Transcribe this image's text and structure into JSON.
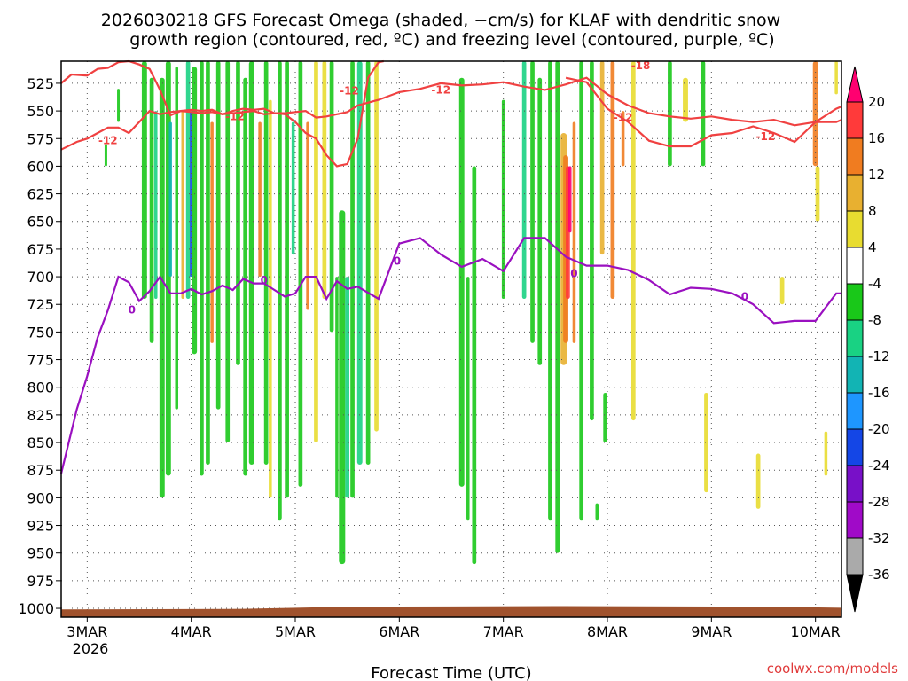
{
  "chart_data": {
    "type": "heatmap",
    "title_line1": "2026030218 GFS Forecast Omega (shaded, −cm/s) for KLAF with dendritic snow",
    "title_line2": "growth region (contoured, red, ºC) and freezing level (contoured, purple, ºC)",
    "xlabel": "Forecast Time (UTC)",
    "credit": "coolwx.com/models",
    "x_ticks": [
      "3MAR",
      "4MAR",
      "5MAR",
      "6MAR",
      "7MAR",
      "8MAR",
      "9MAR",
      "10MAR"
    ],
    "x_year": "2026",
    "x_range_days": [
      2.75,
      10.25
    ],
    "y_ticks": [
      525,
      550,
      575,
      600,
      625,
      650,
      675,
      700,
      725,
      750,
      775,
      800,
      825,
      850,
      875,
      900,
      925,
      950,
      975,
      1000
    ],
    "y_range_hpa": [
      1008,
      505
    ],
    "colorbar": {
      "labels": [
        "20",
        "16",
        "12",
        "8",
        "4",
        "-4",
        "-8",
        "-12",
        "-16",
        "-20",
        "-24",
        "-28",
        "-32",
        "-36"
      ],
      "colors": [
        "#ff0070",
        "#ff3a3a",
        "#f07c20",
        "#e8b030",
        "#e8dc30",
        "#ffffff",
        "#19c819",
        "#19d283",
        "#12b4b4",
        "#1e96ff",
        "#1446e6",
        "#7810c8",
        "#a00ac8",
        "#aaaaaa",
        "#000000"
      ]
    },
    "contour_colors": {
      "dgz": "#f04141",
      "freezing": "#9a10c0"
    },
    "contour_labels": {
      "dgz": "-12",
      "dgz_top": "-18",
      "freezing": "0"
    },
    "series": [
      {
        "name": "dgz_upper",
        "x": [
          2.75,
          2.85,
          3.0,
          3.1,
          3.2,
          3.3,
          3.4,
          3.5,
          3.6,
          3.7,
          3.8,
          3.9,
          4.0,
          4.1,
          4.2,
          4.3,
          4.4,
          4.5,
          4.6,
          4.7,
          4.8,
          4.9,
          5.0,
          5.1,
          5.2,
          5.3,
          5.4,
          5.5,
          5.6,
          5.7,
          5.8,
          5.85
        ],
        "y": [
          525,
          517,
          518,
          512,
          511,
          506,
          505,
          508,
          512,
          531,
          554,
          550,
          549,
          550,
          549,
          553,
          550,
          548,
          549,
          548,
          552,
          553,
          560,
          570,
          575,
          590,
          600,
          598,
          575,
          520,
          506,
          505
        ]
      },
      {
        "name": "dgz_lower",
        "x": [
          2.75,
          2.9,
          3.0,
          3.1,
          3.2,
          3.3,
          3.4,
          3.5,
          3.6,
          3.7,
          3.8,
          3.9,
          4.0,
          4.1,
          4.2,
          4.3,
          4.4,
          4.5,
          4.6,
          4.7,
          4.8,
          4.9,
          5.0,
          5.1,
          5.2,
          5.3,
          5.4,
          5.5,
          5.6,
          5.8,
          6.0,
          6.2,
          6.4,
          6.6,
          6.8,
          7.0,
          7.2,
          7.4,
          7.6,
          7.8,
          8.0,
          8.2,
          8.4,
          8.6,
          8.8,
          9.0,
          9.2,
          9.4,
          9.6,
          9.8,
          10.0,
          10.2,
          10.25
        ],
        "y": [
          585,
          578,
          575,
          570,
          565,
          565,
          570,
          560,
          550,
          553,
          551,
          550,
          551,
          552,
          551,
          553,
          552,
          551,
          550,
          553,
          552,
          552,
          551,
          550,
          556,
          555,
          553,
          551,
          545,
          540,
          533,
          530,
          525,
          527,
          526,
          524,
          528,
          531,
          526,
          520,
          535,
          545,
          552,
          555,
          557,
          555,
          558,
          560,
          558,
          563,
          560,
          560,
          558
        ]
      },
      {
        "name": "dgz_right",
        "x": [
          7.6,
          7.8,
          8.0,
          8.2,
          8.4,
          8.6,
          8.8,
          9.0,
          9.2,
          9.4,
          9.6,
          9.8,
          10.0,
          10.2,
          10.25
        ],
        "y": [
          520,
          524,
          548,
          560,
          577,
          582,
          582,
          572,
          570,
          564,
          570,
          578,
          560,
          548,
          546
        ]
      },
      {
        "name": "freezing",
        "x": [
          2.75,
          2.9,
          3.0,
          3.1,
          3.2,
          3.3,
          3.4,
          3.5,
          3.6,
          3.7,
          3.8,
          3.9,
          4.0,
          4.1,
          4.2,
          4.3,
          4.4,
          4.5,
          4.6,
          4.7,
          4.8,
          4.9,
          5.0,
          5.1,
          5.2,
          5.3,
          5.4,
          5.5,
          5.6,
          5.8,
          6.0,
          6.2,
          6.4,
          6.6,
          6.8,
          7.0,
          7.2,
          7.4,
          7.6,
          7.8,
          8.0,
          8.2,
          8.4,
          8.6,
          8.8,
          9.0,
          9.2,
          9.4,
          9.6,
          9.8,
          10.0,
          10.2,
          10.25
        ],
        "y": [
          878,
          820,
          790,
          755,
          730,
          700,
          705,
          722,
          713,
          700,
          715,
          715,
          711,
          716,
          713,
          708,
          712,
          702,
          706,
          706,
          712,
          718,
          715,
          700,
          700,
          720,
          704,
          711,
          709,
          720,
          670,
          665,
          680,
          691,
          684,
          695,
          665,
          665,
          682,
          690,
          690,
          694,
          703,
          716,
          710,
          711,
          715,
          725,
          742,
          740,
          740,
          715,
          715
        ]
      }
    ]
  }
}
